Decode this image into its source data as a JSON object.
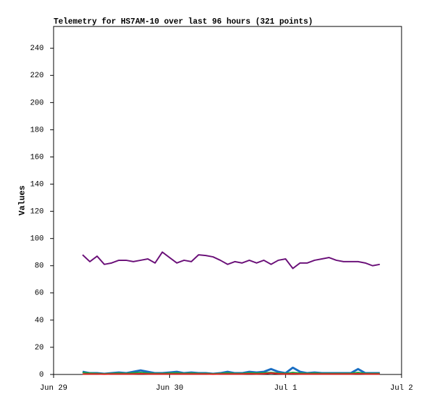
{
  "chart_data": {
    "type": "line",
    "title": "Telemetry for HS7AM-10 over last 96 hours (321 points)",
    "y_label": "Values",
    "x": [
      6,
      7.5,
      9,
      10.5,
      12,
      13.5,
      15,
      16.5,
      18,
      19.5,
      21,
      22.5,
      24,
      25.5,
      27,
      28.5,
      30,
      31.5,
      33,
      34.5,
      36,
      37.5,
      39,
      40.5,
      42,
      43.5,
      45,
      46.5,
      48,
      49.5,
      51,
      52.5,
      54,
      55.5,
      57,
      58.5,
      60,
      61.5,
      63,
      64.5,
      66,
      67.5
    ],
    "xlim": [
      0,
      72
    ],
    "xticks": [
      {
        "value": 0,
        "label": "Jun 29"
      },
      {
        "value": 24,
        "label": "Jun 30"
      },
      {
        "value": 48,
        "label": "Jul 1"
      },
      {
        "value": 72,
        "label": "Jul 2"
      }
    ],
    "ylim": [
      0,
      256
    ],
    "yticks": [
      0,
      20,
      40,
      60,
      80,
      100,
      120,
      140,
      160,
      180,
      200,
      220,
      240
    ],
    "series": [
      {
        "color": "#6a0f78",
        "values": [
          88,
          83,
          87,
          81,
          82,
          84,
          84,
          83,
          84,
          85,
          82,
          90,
          86,
          82,
          84,
          83,
          88,
          87.5,
          86.5,
          84,
          81,
          83,
          82,
          84,
          82,
          84,
          81,
          84,
          85,
          78,
          82,
          82,
          84,
          85,
          86,
          84,
          83,
          83,
          83,
          82,
          80,
          81
        ]
      },
      {
        "color": "#1a6fc4",
        "values": [
          2,
          1,
          1,
          0.5,
          1,
          1.5,
          1,
          2,
          3,
          2,
          1,
          1,
          1.5,
          2,
          1,
          1.5,
          1,
          1,
          0.5,
          1,
          2,
          1,
          1,
          2,
          1.5,
          2,
          4,
          2,
          1,
          5,
          2,
          1,
          1.5,
          1,
          1,
          1,
          1,
          1,
          4,
          1,
          1,
          1
        ]
      },
      {
        "color": "#20a040",
        "values": [
          1.5,
          1,
          0.8,
          0.5,
          0.8,
          1,
          0.8,
          1.2,
          1.5,
          1,
          0.8,
          0.8,
          1,
          1.2,
          0.8,
          1,
          0.8,
          0.8,
          0.5,
          0.8,
          1.2,
          0.8,
          0.8,
          1.2,
          1,
          1.2,
          1.5,
          1,
          0.8,
          1.5,
          1,
          0.8,
          1,
          0.8,
          0.8,
          0.8,
          0.8,
          0.8,
          1.5,
          0.8,
          0.8,
          0.8
        ]
      },
      {
        "color": "#e02020",
        "values": [
          0.3,
          0.3,
          0.3,
          0.2,
          0.3,
          0.3,
          0.3,
          0.3,
          0.5,
          0.3,
          0.3,
          0.3,
          0.3,
          0.3,
          0.3,
          0.3,
          0.3,
          0.3,
          0.2,
          0.3,
          0.3,
          0.3,
          0.3,
          0.5,
          0.3,
          0.5,
          1,
          0.5,
          0.3,
          0.5,
          0.3,
          0.3,
          0.3,
          0.3,
          0.3,
          0.3,
          0.3,
          0.3,
          0.5,
          0.3,
          0.3,
          0.3
        ]
      }
    ]
  }
}
